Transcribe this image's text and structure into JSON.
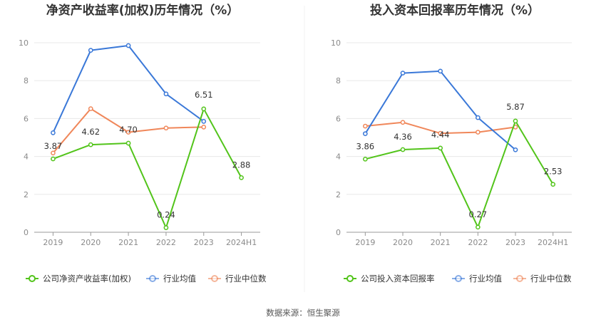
{
  "chart_data": [
    {
      "type": "line",
      "title": "净资产收益率(加权)历年情况（%）",
      "categories": [
        "2019",
        "2020",
        "2021",
        "2022",
        "2023",
        "2024H1"
      ],
      "ylim": [
        0,
        10
      ],
      "yticks": [
        "0",
        "2",
        "4",
        "6",
        "8",
        "10"
      ],
      "grid": true,
      "legend_position": "bottom",
      "series": [
        {
          "name": "公司净资产收益率(加权)",
          "color": "#52c41a",
          "values": [
            3.87,
            4.62,
            4.7,
            0.24,
            6.51,
            2.88
          ],
          "labels": [
            "3.87",
            "4.62",
            "4.70",
            "0.24",
            "6.51",
            "2.88"
          ]
        },
        {
          "name": "行业均值",
          "color": "#3a78d8",
          "values": [
            5.25,
            9.6,
            9.85,
            7.3,
            5.85,
            null
          ]
        },
        {
          "name": "行业中位数",
          "color": "#f0875a",
          "values": [
            4.18,
            6.52,
            5.28,
            5.5,
            5.55,
            null
          ]
        }
      ]
    },
    {
      "type": "line",
      "title": "投入资本回报率历年情况（%）",
      "categories": [
        "2019",
        "2020",
        "2021",
        "2022",
        "2023",
        "2024H1"
      ],
      "ylim": [
        0,
        10
      ],
      "yticks": [
        "0",
        "2",
        "4",
        "6",
        "8",
        "10"
      ],
      "grid": true,
      "legend_position": "bottom",
      "series": [
        {
          "name": "公司投入资本回报率",
          "color": "#52c41a",
          "values": [
            3.86,
            4.36,
            4.44,
            0.27,
            5.87,
            2.53
          ],
          "labels": [
            "3.86",
            "4.36",
            "4.44",
            "0.27",
            "5.87",
            "2.53"
          ]
        },
        {
          "name": "行业均值",
          "color": "#3a78d8",
          "values": [
            5.2,
            8.4,
            8.5,
            6.05,
            4.35,
            null
          ]
        },
        {
          "name": "行业中位数",
          "color": "#f0875a",
          "values": [
            5.6,
            5.8,
            5.22,
            5.28,
            5.55,
            null
          ]
        }
      ]
    }
  ],
  "footer": {
    "source": "数据来源：恒生聚源"
  }
}
